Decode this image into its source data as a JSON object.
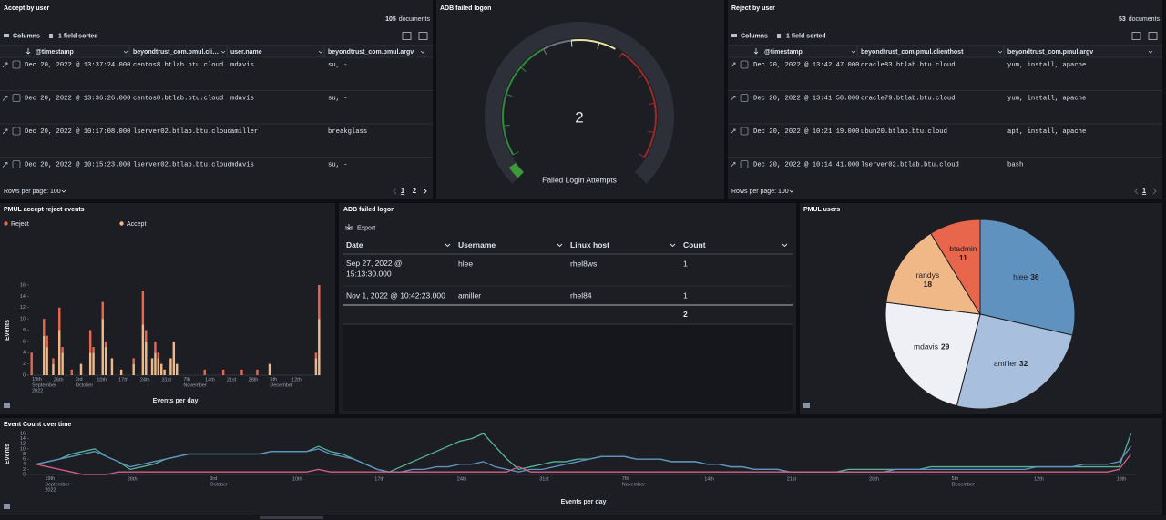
{
  "accept_by_user": {
    "title": "Accept by user",
    "count": 105,
    "count_unit": "documents",
    "columns_button": "Columns",
    "sort_status": "1 field sorted",
    "columns": [
      "@timestamp",
      "beyondtrust_com.pmul.cli…",
      "user.name",
      "beyondtrust_com.pmul.argv"
    ],
    "rows": [
      [
        "Dec 20, 2022 @ 13:37:24.000",
        "centos8.btlab.btu.cloud",
        "mdavis",
        "su, -"
      ],
      [
        "Dec 20, 2022 @ 13:36:26.000",
        "centos8.btlab.btu.cloud",
        "mdavis",
        "su, -"
      ],
      [
        "Dec 20, 2022 @ 10:17:08.000",
        "lserver02.btlab.btu.cloud",
        "amiller",
        "breakglass"
      ],
      [
        "Dec 20, 2022 @ 10:15:23.000",
        "lserver02.btlab.btu.cloud",
        "mdavis",
        "su, -"
      ]
    ],
    "rows_per_page": "Rows per page: 100",
    "pages": [
      "1",
      "2"
    ]
  },
  "failed_logon_gauge": {
    "title": "ADB failed logon",
    "value": 2,
    "label": "Failed Login Attempts"
  },
  "reject_by_user": {
    "title": "Reject by user",
    "count": 53,
    "count_unit": "documents",
    "columns_button": "Columns",
    "sort_status": "1 field sorted",
    "columns": [
      "@timestamp",
      "beyondtrust_com.pmul.clienthost",
      "beyondtrust_com.pmul.argv"
    ],
    "rows": [
      [
        "Dec 20, 2022 @ 13:42:47.000",
        "oracle83.btlab.btu.cloud",
        "yum, install, apache"
      ],
      [
        "Dec 20, 2022 @ 13:41:50.000",
        "oracle79.btlab.btu.cloud",
        "yum, install, apache"
      ],
      [
        "Dec 20, 2022 @ 10:21:19.000",
        "ubun20.btlab.btu.cloud",
        "apt, install, apache"
      ],
      [
        "Dec 20, 2022 @ 10:14:41.000",
        "lserver02.btlab.btu.cloud",
        "bash"
      ]
    ],
    "rows_per_page": "Rows per page: 100",
    "pages": [
      "1"
    ]
  },
  "adb_failed_logon_table": {
    "title": "ADB failed logon",
    "export_button": "Export",
    "columns": [
      "Date",
      "Username",
      "Linux host",
      "Count"
    ],
    "rows": [
      [
        "Sep 27, 2022 @ 15:13:30.000",
        "hlee",
        "rhel8ws",
        1
      ],
      [
        "Nov 1, 2022 @ 10:42:23.000",
        "amiller",
        "rhel84",
        1
      ]
    ],
    "total": 2
  },
  "chart_data": [
    {
      "type": "bar",
      "stacked": true,
      "title": "PMUL accept reject events",
      "xlabel": "Events per day",
      "ylabel": "Events",
      "categories": [
        null,
        "19th\nSeptember\n2022",
        null,
        null,
        null,
        null,
        null,
        null,
        "26th",
        null,
        null,
        null,
        null,
        null,
        null,
        "3rd\nOctober",
        null,
        null,
        null,
        null,
        null,
        null,
        "10th",
        null,
        null,
        null,
        null,
        null,
        null,
        "17th",
        null,
        null,
        null,
        null,
        null,
        null,
        "24th",
        null,
        null,
        null,
        null,
        null,
        null,
        "31st",
        null,
        null,
        null,
        null,
        null,
        null,
        "7th\nNovember",
        null,
        null,
        null,
        null,
        null,
        null,
        "14th",
        null,
        null,
        null,
        null,
        null,
        null,
        "21st",
        null,
        null,
        null,
        null,
        null,
        null,
        "28th",
        null,
        null,
        null,
        null,
        null,
        null,
        "5th\nDecember",
        null,
        null,
        null,
        null,
        null,
        null,
        "12th",
        null,
        null,
        null,
        null,
        null,
        null,
        null,
        null
      ],
      "series": [
        {
          "name": "Reject",
          "color": "#e7664c",
          "values": [
            4,
            0,
            0,
            0,
            3,
            2,
            0,
            1,
            0,
            4,
            1,
            0,
            0,
            1,
            0,
            0,
            0,
            0,
            0,
            4,
            1,
            0,
            0,
            3,
            1,
            0,
            0,
            0,
            0,
            0,
            0,
            0,
            0,
            1,
            0,
            0,
            6,
            2,
            0,
            0,
            2,
            1,
            0,
            0,
            0,
            0,
            0,
            0,
            0,
            0,
            0,
            0,
            0,
            0,
            0,
            0,
            1,
            0,
            0,
            0,
            0,
            0,
            1,
            0,
            0,
            0,
            0,
            0,
            1,
            0,
            0,
            0,
            0,
            1,
            0,
            0,
            0,
            0,
            0,
            0,
            0,
            0,
            0,
            0,
            0,
            0,
            0,
            0,
            0,
            0,
            0,
            0,
            1,
            6
          ]
        },
        {
          "name": "Accept",
          "color": "#f1b887",
          "values": [
            0,
            0,
            0,
            0,
            7,
            5,
            0,
            2,
            0,
            8,
            4,
            0,
            0,
            0,
            0,
            0,
            2,
            0,
            0,
            4,
            4,
            0,
            0,
            10,
            5,
            0,
            3,
            0,
            0,
            1,
            0,
            0,
            0,
            2,
            0,
            0,
            9,
            6,
            0,
            3,
            4,
            3,
            2,
            1,
            0,
            3,
            6,
            2,
            0,
            0,
            0,
            0,
            0,
            0,
            0,
            0,
            0,
            0,
            0,
            0,
            0,
            0,
            0,
            0,
            0,
            0,
            0,
            0,
            0,
            0,
            0,
            0,
            0,
            0,
            0,
            0,
            0,
            2,
            0,
            0,
            0,
            0,
            0,
            0,
            0,
            0,
            0,
            0,
            0,
            0,
            0,
            0,
            3,
            10
          ]
        }
      ],
      "ylim": [
        0,
        16
      ],
      "yticks": [
        0,
        2,
        4,
        6,
        8,
        10,
        12,
        14,
        16
      ],
      "legend": "top-left"
    },
    {
      "type": "pie",
      "title": "PMUL users",
      "categories": [
        "hlee",
        "amiller",
        "mdavis",
        "randys",
        "btadmin"
      ],
      "values": [
        36,
        32,
        29,
        18,
        11
      ],
      "colors": [
        "#6092c0",
        "#a8c0dd",
        "#eef0f5",
        "#f1b887",
        "#e7664c"
      ]
    },
    {
      "type": "line",
      "title": "Event Count over time",
      "xlabel": "Events per day",
      "ylabel": "Events",
      "categories": [
        null,
        "19th\nSeptember\n2022",
        null,
        null,
        null,
        null,
        null,
        null,
        "26th",
        null,
        null,
        null,
        null,
        null,
        null,
        "3rd\nOctober",
        null,
        null,
        null,
        null,
        null,
        null,
        "10th",
        null,
        null,
        null,
        null,
        null,
        null,
        "17th",
        null,
        null,
        null,
        null,
        null,
        null,
        "24th",
        null,
        null,
        null,
        null,
        null,
        null,
        "31st",
        null,
        null,
        null,
        null,
        null,
        null,
        "7th\nNovember",
        null,
        null,
        null,
        null,
        null,
        null,
        "14th",
        null,
        null,
        null,
        null,
        null,
        null,
        "21st",
        null,
        null,
        null,
        null,
        null,
        null,
        "28th",
        null,
        null,
        null,
        null,
        null,
        null,
        "5th\nDecember",
        null,
        null,
        null,
        null,
        null,
        null,
        "12th",
        null,
        null,
        null,
        null,
        null,
        null,
        "19th",
        null
      ],
      "series": [
        {
          "color": "#54b399",
          "values": [
            4,
            5,
            6,
            8,
            9,
            10,
            7,
            5,
            2,
            3,
            4,
            6,
            7,
            8,
            8,
            8,
            8,
            8,
            8,
            8,
            9,
            9,
            9,
            9,
            11,
            9,
            8,
            6,
            4,
            2,
            1,
            3,
            5,
            7,
            9,
            11,
            13,
            14,
            16,
            11,
            6,
            2,
            3,
            4,
            5,
            5,
            6,
            6,
            7,
            7,
            7,
            6,
            6,
            6,
            5,
            5,
            5,
            4,
            4,
            3,
            3,
            2,
            2,
            2,
            1,
            1,
            1,
            1,
            1,
            2,
            2,
            2,
            2,
            2,
            2,
            2,
            3,
            3,
            3,
            3,
            3,
            3,
            3,
            3,
            3,
            3,
            3,
            3,
            3,
            3,
            3,
            3,
            3,
            16
          ]
        },
        {
          "color": "#6092c0",
          "values": [
            4,
            5,
            6,
            7,
            8,
            9,
            7,
            5,
            3,
            4,
            5,
            6,
            7,
            8,
            8,
            8,
            8,
            8,
            8,
            8,
            9,
            9,
            9,
            9,
            10,
            8,
            7,
            6,
            4,
            2,
            1,
            1,
            2,
            2,
            3,
            3,
            4,
            4,
            5,
            3,
            2,
            1,
            2,
            2,
            3,
            4,
            5,
            6,
            7,
            7,
            7,
            6,
            6,
            6,
            5,
            5,
            5,
            4,
            4,
            3,
            3,
            2,
            2,
            2,
            1,
            1,
            1,
            1,
            1,
            1,
            1,
            1,
            1,
            2,
            2,
            2,
            2,
            2,
            2,
            2,
            2,
            2,
            2,
            2,
            2,
            3,
            3,
            3,
            3,
            4,
            4,
            4,
            5,
            11
          ]
        },
        {
          "color": "#d36086",
          "values": [
            4,
            3,
            2,
            1,
            0,
            0,
            0,
            1,
            1,
            1,
            1,
            1,
            1,
            1,
            1,
            1,
            1,
            1,
            1,
            1,
            1,
            1,
            1,
            1,
            2,
            1,
            1,
            1,
            1,
            1,
            1,
            1,
            1,
            1,
            1,
            1,
            1,
            1,
            1,
            1,
            1,
            3,
            1,
            1,
            1,
            1,
            1,
            1,
            1,
            1,
            1,
            1,
            1,
            1,
            1,
            1,
            1,
            1,
            1,
            1,
            1,
            1,
            1,
            1,
            1,
            1,
            1,
            1,
            1,
            1,
            1,
            1,
            1,
            1,
            1,
            1,
            1,
            1,
            1,
            1,
            1,
            1,
            1,
            1,
            1,
            1,
            1,
            1,
            1,
            1,
            1,
            1,
            2,
            8
          ]
        }
      ],
      "ylim": [
        0,
        16
      ],
      "yticks": [
        0,
        2,
        4,
        6,
        8,
        10,
        12,
        14,
        16
      ]
    }
  ]
}
